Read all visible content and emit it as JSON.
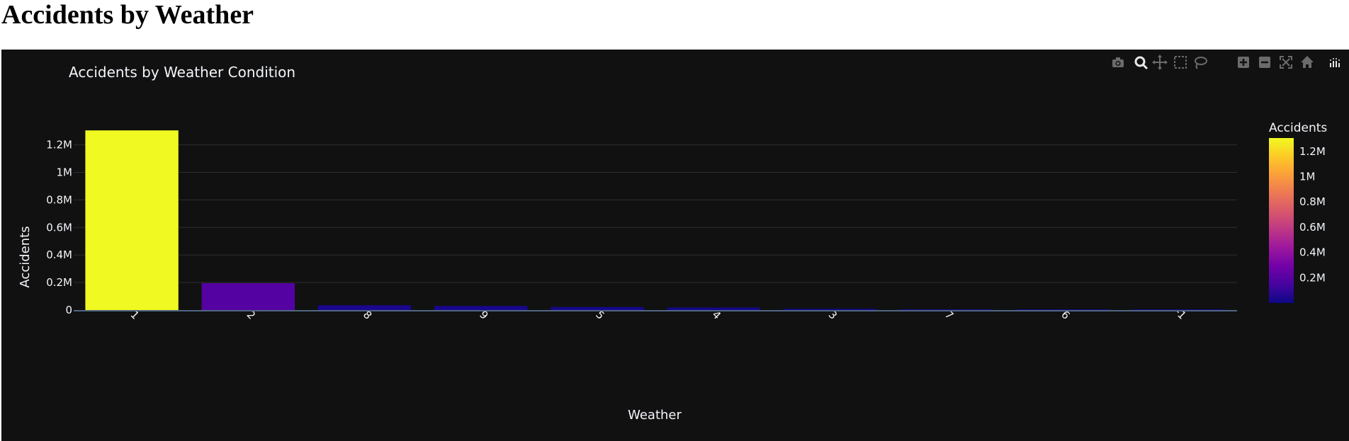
{
  "page": {
    "heading": "Accidents by Weather"
  },
  "modebar": {
    "buttons": [
      {
        "name": "camera-icon"
      },
      {
        "name": "zoom-icon"
      },
      {
        "name": "pan-icon"
      },
      {
        "name": "box-select-icon"
      },
      {
        "name": "lasso-select-icon"
      },
      {
        "name": "zoom-in-icon"
      },
      {
        "name": "zoom-out-icon"
      },
      {
        "name": "autoscale-icon"
      },
      {
        "name": "reset-axes-icon"
      },
      {
        "name": "plotly-logo-icon"
      }
    ]
  },
  "colors": {
    "background": "#111111",
    "grid": "#2e2e2e",
    "text": "#f2f5fa",
    "axis_line": "#506784",
    "colorscale": [
      "#0d0887",
      "#46039f",
      "#7201a8",
      "#9c179e",
      "#bd3786",
      "#d8576b",
      "#ed7953",
      "#fb9f3a",
      "#fdca26",
      "#f0f921"
    ]
  },
  "chart_data": {
    "type": "bar",
    "title": "Accidents by Weather Condition",
    "xlabel": "Weather",
    "ylabel": "Accidents",
    "categories": [
      "1",
      "2",
      "8",
      "9",
      "5",
      "4",
      "3",
      "7",
      "6",
      "-1"
    ],
    "values": [
      1305000,
      195000,
      35000,
      30000,
      22000,
      18000,
      9000,
      5000,
      2500,
      800
    ],
    "ylim": [
      0,
      1378000
    ],
    "yticks": [
      {
        "value": 0,
        "label": "0"
      },
      {
        "value": 200000,
        "label": "0.2M"
      },
      {
        "value": 400000,
        "label": "0.4M"
      },
      {
        "value": 600000,
        "label": "0.6M"
      },
      {
        "value": 800000,
        "label": "0.8M"
      },
      {
        "value": 1000000,
        "label": "1M"
      },
      {
        "value": 1200000,
        "label": "1.2M"
      }
    ],
    "grid": true,
    "colorbar": {
      "title": "Accidents",
      "range": [
        800,
        1305000
      ],
      "ticks": [
        {
          "value": 200000,
          "label": "0.2M"
        },
        {
          "value": 400000,
          "label": "0.4M"
        },
        {
          "value": 600000,
          "label": "0.6M"
        },
        {
          "value": 800000,
          "label": "0.8M"
        },
        {
          "value": 1000000,
          "label": "1M"
        },
        {
          "value": 1200000,
          "label": "1.2M"
        }
      ]
    }
  }
}
